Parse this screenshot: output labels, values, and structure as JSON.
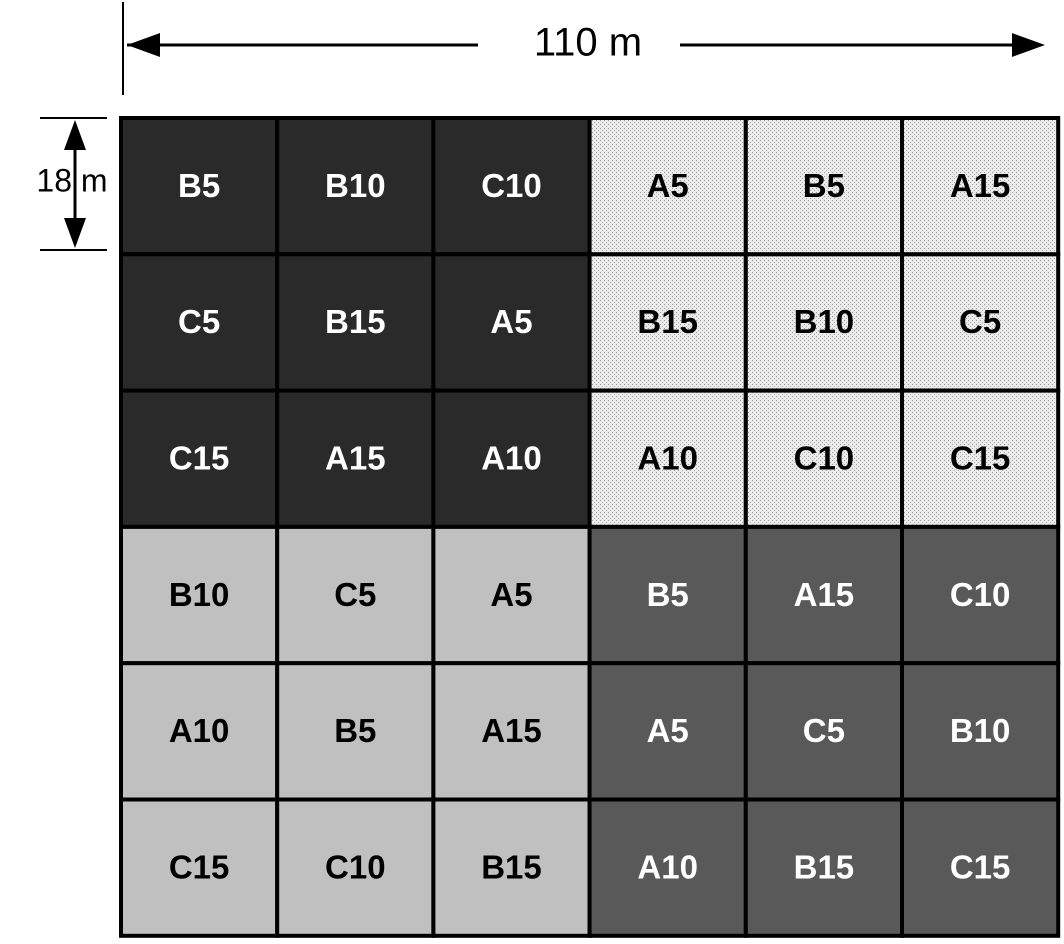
{
  "dimensions": {
    "width_label": "110 m",
    "height_label": "18 m"
  },
  "grid": {
    "rows": [
      [
        "B5",
        "B10",
        "C10",
        "A5",
        "B5",
        "A15"
      ],
      [
        "C5",
        "B15",
        "A5",
        "B15",
        "B10",
        "C5"
      ],
      [
        "C15",
        "A15",
        "A10",
        "A10",
        "C10",
        "C15"
      ],
      [
        "B10",
        "C5",
        "A5",
        "B5",
        "A15",
        "C10"
      ],
      [
        "A10",
        "B5",
        "A15",
        "A5",
        "C5",
        "B10"
      ],
      [
        "C15",
        "C10",
        "B15",
        "A10",
        "B15",
        "C15"
      ]
    ]
  }
}
